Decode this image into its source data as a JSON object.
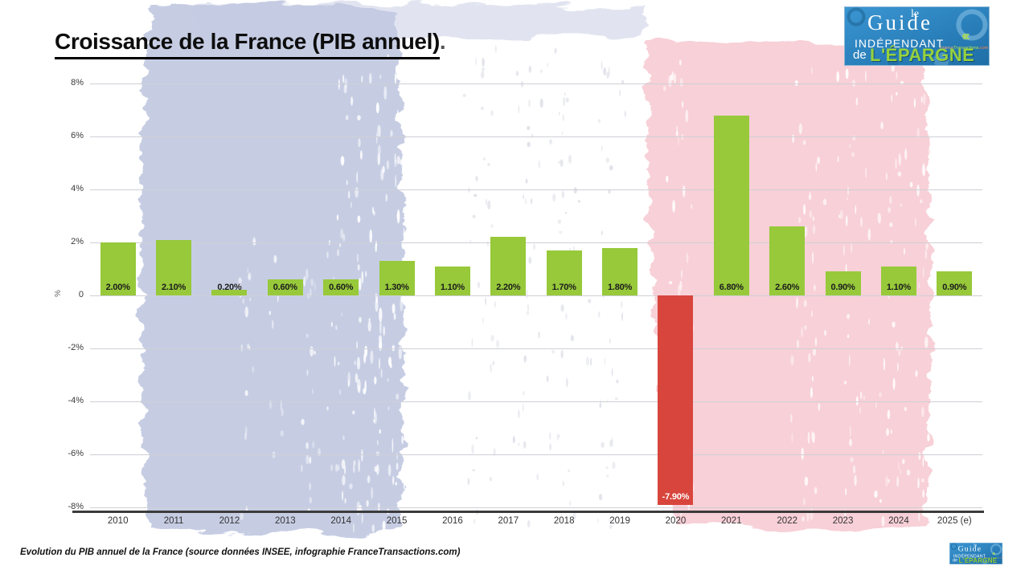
{
  "page": {
    "title": "Croissance de la France (PIB annuel)",
    "title_suffix": ".",
    "caption": "Evolution du PIB annuel de la France (source données INSEE, infographie FranceTransactions.com)"
  },
  "logo": {
    "le": "le",
    "guide": "Guide",
    "independant": "INDÉPENDANT",
    "brand_france": "France",
    "brand_transactions": "Transactions",
    "brand_com": ".com",
    "de": "de",
    "epargne": "L'ÉPARGNE"
  },
  "icons": {
    "euro_stack": "€€"
  },
  "chart_data": {
    "type": "bar",
    "title": "Croissance de la France (PIB annuel)",
    "categories": [
      "2010",
      "2011",
      "2012",
      "2013",
      "2014",
      "2015",
      "2016",
      "2017",
      "2018",
      "2019",
      "2020",
      "2021",
      "2022",
      "2023",
      "2024",
      "2025 (e)"
    ],
    "values": [
      2.0,
      2.1,
      0.2,
      0.6,
      0.6,
      1.3,
      1.1,
      2.2,
      1.7,
      1.8,
      -7.9,
      6.8,
      2.6,
      0.9,
      1.1,
      0.9
    ],
    "value_labels": [
      "2.00%",
      "2.10%",
      "0.20%",
      "0.60%",
      "0.60%",
      "1.30%",
      "1.10%",
      "2.20%",
      "1.70%",
      "1.80%",
      "-7.90%",
      "6.80%",
      "2.60%",
      "0.90%",
      "1.10%",
      "0.90%"
    ],
    "xlabel": "",
    "ylabel": "%",
    "ylim": [
      -8,
      8
    ],
    "ytick_values": [
      8,
      6,
      4,
      2,
      0,
      -2,
      -4,
      -6,
      -8
    ],
    "ytick_labels": [
      "8%",
      "6%",
      "4%",
      "2%",
      "0",
      "-2%",
      "-4%",
      "-6%",
      "-8%"
    ],
    "grid": true,
    "legend": false,
    "colors": {
      "bar_positive": "#97c93a",
      "bar_negative": "#d8453c",
      "label_positive": "#1c1c1c",
      "label_negative": "#ffffff"
    }
  },
  "background": {
    "flag_blue": "#c3cae2",
    "flag_pink": "#f8ced5",
    "flag_white_speckle": "#dcdee6"
  }
}
